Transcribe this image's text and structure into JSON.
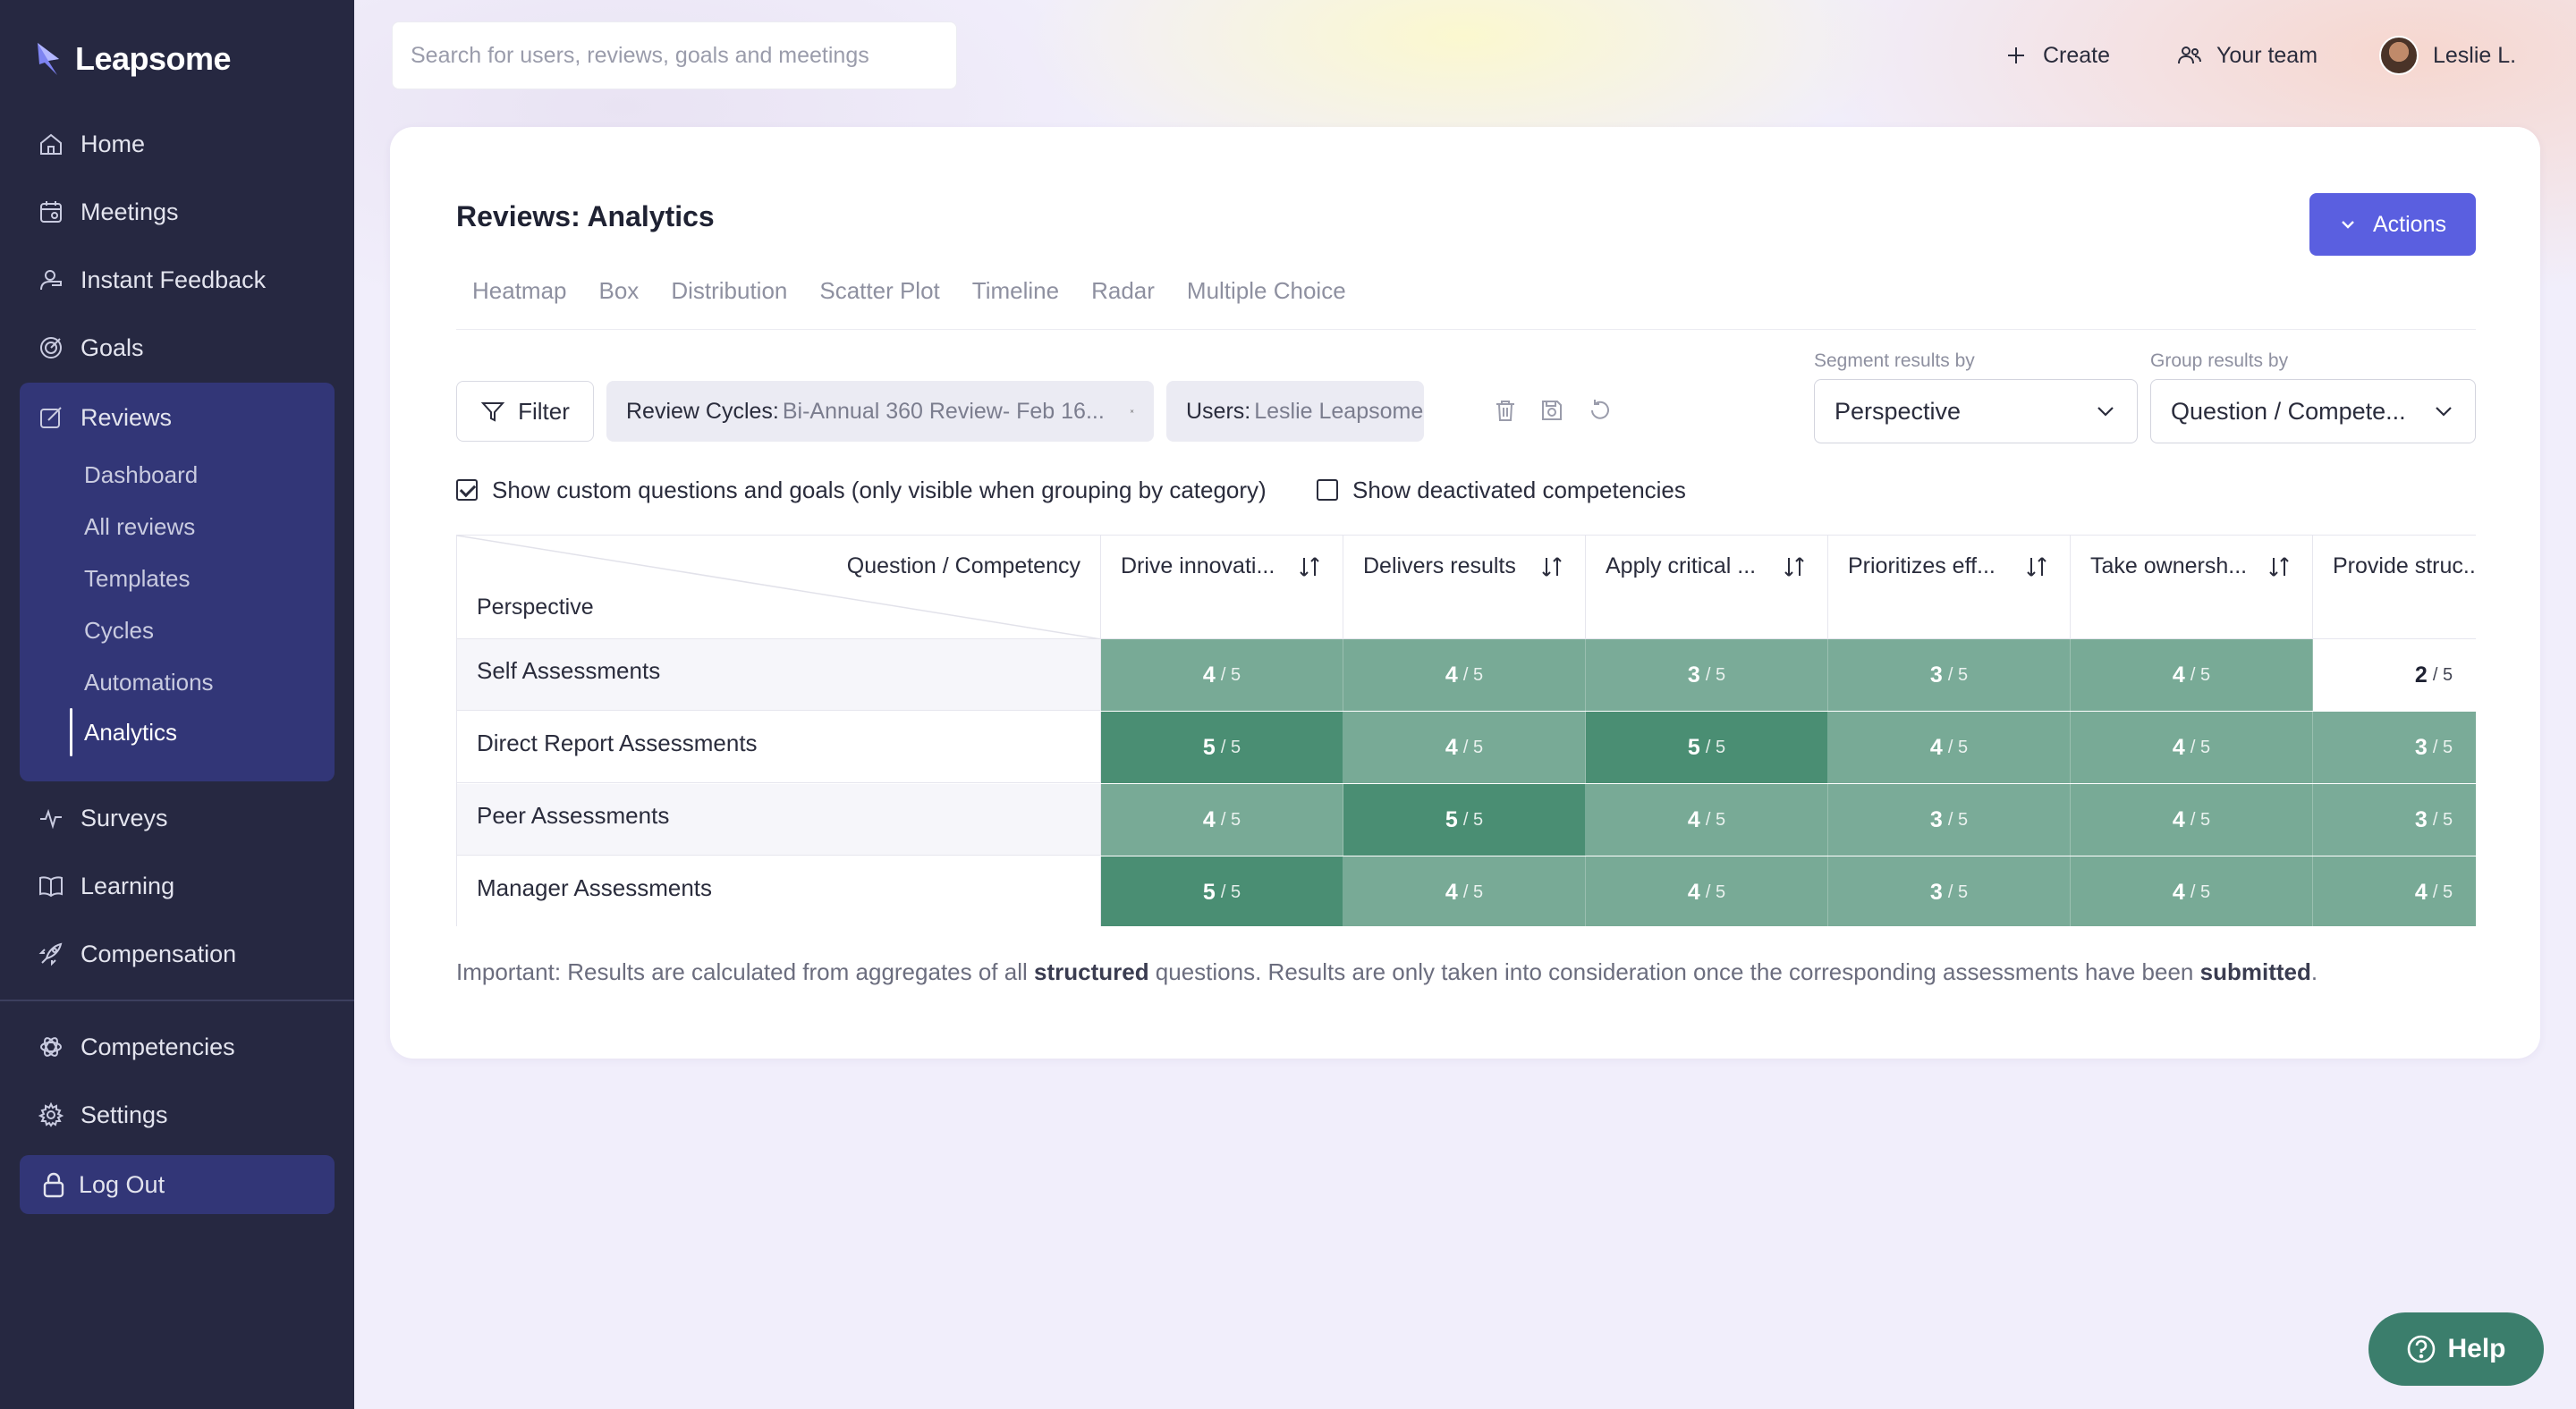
{
  "app": {
    "name": "Leapsome"
  },
  "sidebar": {
    "items": [
      {
        "label": "Home",
        "icon": "home-icon"
      },
      {
        "label": "Meetings",
        "icon": "calendar-icon"
      },
      {
        "label": "Instant Feedback",
        "icon": "feedback-icon"
      },
      {
        "label": "Goals",
        "icon": "target-icon"
      },
      {
        "label": "Reviews",
        "icon": "edit-icon"
      },
      {
        "label": "Surveys",
        "icon": "pulse-icon"
      },
      {
        "label": "Learning",
        "icon": "book-icon"
      },
      {
        "label": "Compensation",
        "icon": "rocket-icon"
      },
      {
        "label": "Competencies",
        "icon": "atom-icon"
      },
      {
        "label": "Settings",
        "icon": "gear-icon"
      }
    ],
    "reviews_sub": [
      "Dashboard",
      "All reviews",
      "Templates",
      "Cycles",
      "Automations",
      "Analytics"
    ],
    "active_sub": "Analytics",
    "logout": "Log Out"
  },
  "topbar": {
    "search_placeholder": "Search for users, reviews, goals and meetings",
    "create": "Create",
    "your_team": "Your team",
    "user": "Leslie L."
  },
  "page": {
    "title": "Reviews: Analytics",
    "actions": "Actions",
    "tabs": [
      "Heatmap",
      "Box",
      "Distribution",
      "Scatter Plot",
      "Timeline",
      "Radar",
      "Multiple Choice"
    ]
  },
  "filters": {
    "filter_label": "Filter",
    "chip1_key": "Review Cycles:",
    "chip1_val": "Bi-Annual 360 Review- Feb 16...",
    "chip2_key": "Users:",
    "chip2_val": "Leslie Leapsome",
    "segment_label": "Segment results by",
    "segment_value": "Perspective",
    "group_label": "Group results by",
    "group_value": "Question / Compete...",
    "show_custom": "Show custom questions and goals (only visible when grouping by category)",
    "show_custom_checked": true,
    "show_deactivated": "Show deactivated competencies",
    "show_deactivated_checked": false
  },
  "table": {
    "corner_top": "Question / Competency",
    "corner_bottom": "Perspective",
    "columns": [
      "Drive innovati...",
      "Delivers results",
      "Apply critical ...",
      "Prioritizes eff...",
      "Take ownersh...",
      "Provide struc..."
    ],
    "rows": [
      {
        "label": "Self Assessments",
        "scores": [
          4,
          4,
          3,
          3,
          4,
          2
        ]
      },
      {
        "label": "Direct Report Assessments",
        "scores": [
          5,
          4,
          5,
          4,
          4,
          3
        ]
      },
      {
        "label": "Peer Assessments",
        "scores": [
          4,
          5,
          4,
          3,
          4,
          3
        ]
      },
      {
        "label": "Manager Assessments",
        "scores": [
          5,
          4,
          4,
          3,
          4,
          4
        ]
      }
    ],
    "max_label": "/ 5"
  },
  "note": {
    "part1": "Important: Results are calculated from aggregates of all ",
    "bold1": "structured",
    "part2": " questions. Results are only taken into consideration once the corresponding assessments have been ",
    "bold2": "submitted",
    "part3": "."
  },
  "help": {
    "label": "Help"
  }
}
